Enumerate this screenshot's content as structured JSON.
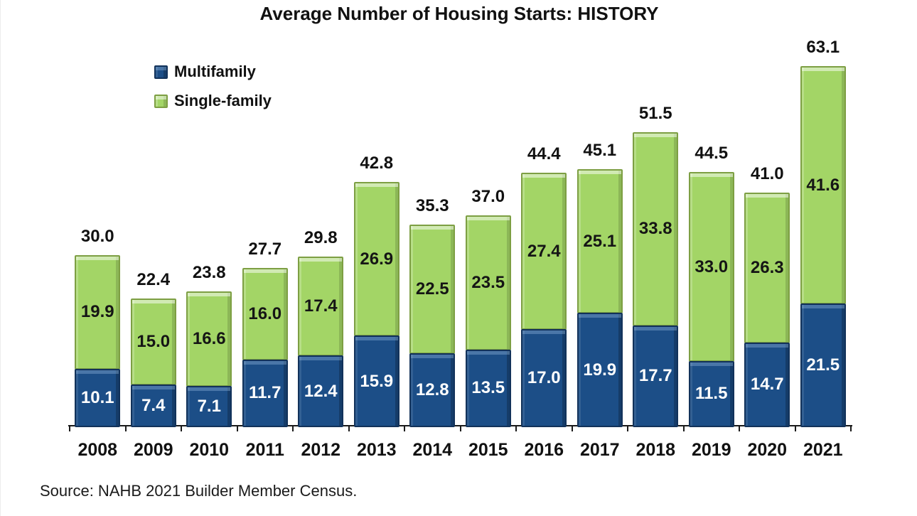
{
  "title": "Average Number of Housing Starts: HISTORY",
  "source": "Source: NAHB 2021 Builder Member Census.",
  "legend": [
    {
      "label": "Multifamily",
      "color": "#1c4e87"
    },
    {
      "label": "Single-family",
      "color": "#a3d566"
    }
  ],
  "colors": {
    "multifamily": "#1c4e87",
    "multifamily_border": "#12325a",
    "single_family": "#a3d566",
    "single_family_border": "#7d9f43",
    "axis": "#1a1a1a",
    "background": "#ffffff"
  },
  "chart_data": {
    "type": "bar",
    "stacked": true,
    "title": "Average Number of Housing Starts: HISTORY",
    "xlabel": "",
    "ylabel": "",
    "ylim": [
      0,
      63.1
    ],
    "grid": false,
    "legend_position": "top-left",
    "categories": [
      "2008",
      "2009",
      "2010",
      "2011",
      "2012",
      "2013",
      "2014",
      "2015",
      "2016",
      "2017",
      "2018",
      "2019",
      "2020",
      "2021"
    ],
    "series": [
      {
        "name": "Multifamily",
        "color": "#1c4e87",
        "values": [
          10.1,
          7.4,
          7.1,
          11.7,
          12.4,
          15.9,
          12.8,
          13.5,
          17.0,
          19.9,
          17.7,
          11.5,
          14.7,
          21.5
        ]
      },
      {
        "name": "Single-family",
        "color": "#a3d566",
        "values": [
          19.9,
          15.0,
          16.6,
          16.0,
          17.4,
          26.9,
          22.5,
          23.5,
          27.4,
          25.1,
          33.8,
          33.0,
          26.3,
          41.6
        ]
      }
    ],
    "totals": [
      30.0,
      22.4,
      23.8,
      27.7,
      29.8,
      42.8,
      35.3,
      37.0,
      44.4,
      45.1,
      51.5,
      44.5,
      41.0,
      63.1
    ]
  }
}
